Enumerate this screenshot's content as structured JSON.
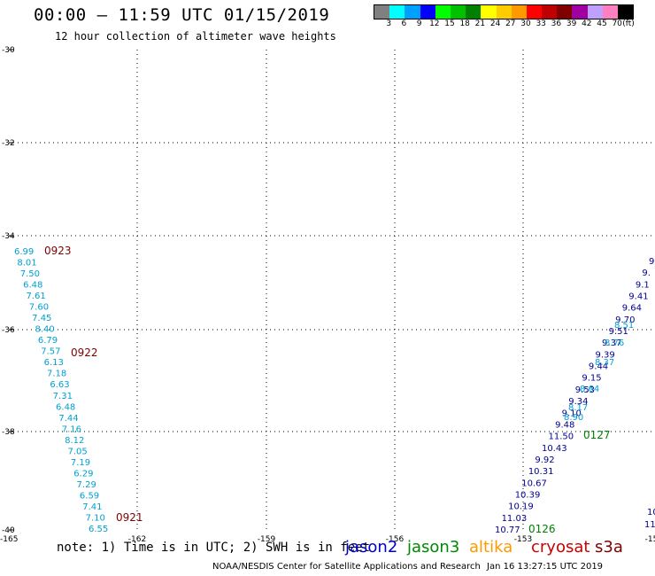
{
  "header": {
    "title": "00:00 – 11:59 UTC 01/15/2019",
    "subtitle": "12 hour collection of altimeter wave heights"
  },
  "legend": {
    "unit": "(ft)",
    "bins": [
      {
        "color": "#808080",
        "label": "3"
      },
      {
        "color": "#00ffff",
        "label": "6"
      },
      {
        "color": "#00a0ff",
        "label": "9"
      },
      {
        "color": "#0000ff",
        "label": "12"
      },
      {
        "color": "#00ff00",
        "label": "15"
      },
      {
        "color": "#00c000",
        "label": "18"
      },
      {
        "color": "#008000",
        "label": "21"
      },
      {
        "color": "#ffff00",
        "label": "24"
      },
      {
        "color": "#ffcc00",
        "label": "27"
      },
      {
        "color": "#ff9900",
        "label": "30"
      },
      {
        "color": "#ff0000",
        "label": "33"
      },
      {
        "color": "#c00000",
        "label": "36"
      },
      {
        "color": "#800000",
        "label": "39"
      },
      {
        "color": "#a000a0",
        "label": "42"
      },
      {
        "color": "#c0a0ff",
        "label": "45"
      },
      {
        "color": "#ff80c0",
        "label": "70"
      },
      {
        "color": "#000000",
        "label": ""
      }
    ]
  },
  "map": {
    "lat_ticks": [
      "-30",
      "-32",
      "-34",
      "-36",
      "-38",
      "-40"
    ],
    "lon_ticks": [
      "-165",
      "-162",
      "-159",
      "-156",
      "-153",
      "-15"
    ],
    "track_colors": {
      "light": "#00a0d0",
      "dark": "#000090",
      "time_red": "#800000",
      "time_green": "#008000"
    },
    "track_left": {
      "values": [
        "6.99",
        "8.01",
        "7.50",
        "6.48",
        "7.61",
        "7.60",
        "7.45",
        "8.40",
        "6.79",
        "7.57",
        "6.13",
        "7.18",
        "6.63",
        "7.31",
        "6.48",
        "7.44",
        "7.16",
        "8.12",
        "7.05",
        "7.19",
        "6.29",
        "7.29",
        "6.59",
        "7.41",
        "7.10",
        "6.55"
      ],
      "times": [
        "0923",
        "0922",
        "0921"
      ]
    },
    "track_right_dark": {
      "values": [
        "9",
        "9.",
        "9.1",
        "9.41",
        "9.64",
        "9.70",
        "9.51",
        "9.37",
        "9.39",
        "9.44",
        "9.15",
        "9.53",
        "9.34",
        "9.10",
        "9.48",
        "11.50",
        "10.43",
        "9.92",
        "10.31",
        "10.67",
        "10.39",
        "10.19",
        "11.03",
        "10.77",
        "10",
        "11"
      ]
    },
    "track_right_light": {
      "values": [
        "8.51",
        "8.76",
        "8.37",
        "8.64",
        "8.17",
        "8.90"
      ],
      "times": [
        "0127",
        "0126"
      ]
    }
  },
  "footer": {
    "note": "note: 1) Time is in UTC; 2) SWH is in feet",
    "satellites": [
      {
        "name": "jason2",
        "color": "#0000cc"
      },
      {
        "name": "jason3",
        "color": "#008800"
      },
      {
        "name": "altika",
        "color": "#ff9900"
      },
      {
        "name": "cryosat",
        "color": "#cc0000"
      },
      {
        "name": "s3a",
        "color": "#800000"
      }
    ],
    "credit": "NOAA/NESDIS Center for Satellite Applications and Research",
    "timestamp": "Jan 16 13:27:15 UTC 2019"
  }
}
